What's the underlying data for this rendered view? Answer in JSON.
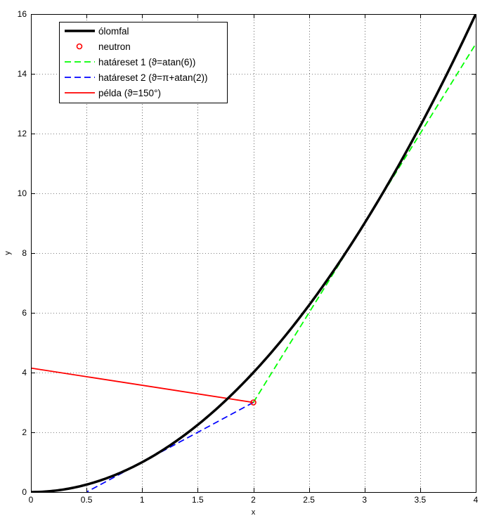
{
  "chart_data": {
    "type": "line",
    "xlabel": "x",
    "ylabel": "y",
    "xlim": [
      0,
      4
    ],
    "ylim": [
      0,
      16
    ],
    "grid": true,
    "legend_placement": "top-left",
    "xticks": [
      0,
      0.5,
      1,
      1.5,
      2,
      2.5,
      3,
      3.5,
      4
    ],
    "xtick_labels": [
      "0",
      "0.5",
      "1",
      "1.5",
      "2",
      "2.5",
      "3",
      "3.5",
      "4"
    ],
    "yticks": [
      0,
      2,
      4,
      6,
      8,
      10,
      12,
      14,
      16
    ],
    "ytick_labels": [
      "0",
      "2",
      "4",
      "6",
      "8",
      "10",
      "12",
      "14",
      "16"
    ],
    "series": [
      {
        "name": "ólomfal",
        "kind": "curve",
        "color": "#000000",
        "style": "solid",
        "x": [
          0,
          0.25,
          0.5,
          0.75,
          1,
          1.25,
          1.5,
          1.75,
          2,
          2.25,
          2.5,
          2.75,
          3,
          3.25,
          3.5,
          3.75,
          4
        ],
        "y": [
          0,
          0.0625,
          0.25,
          0.5625,
          1,
          1.5625,
          2.25,
          3.0625,
          4,
          5.0625,
          6.25,
          7.5625,
          9,
          10.5625,
          12.25,
          14.0625,
          16
        ]
      },
      {
        "name": "neutron",
        "kind": "marker",
        "color": "#ff0000",
        "x": [
          2
        ],
        "y": [
          3
        ]
      },
      {
        "name": "határeset 1 (ϑ=atan(6))",
        "kind": "line",
        "color": "#00ff00",
        "style": "dashed",
        "x": [
          2,
          4
        ],
        "y": [
          3,
          15
        ]
      },
      {
        "name": "határeset 2 (ϑ=π+atan(2))",
        "kind": "line",
        "color": "#0000ff",
        "style": "dashed",
        "x": [
          2,
          0.5
        ],
        "y": [
          3,
          0
        ]
      },
      {
        "name": "példa (ϑ=150°)",
        "kind": "line",
        "color": "#ff0000",
        "style": "solid",
        "x": [
          2,
          0
        ],
        "y": [
          3,
          4.15
        ]
      }
    ]
  }
}
